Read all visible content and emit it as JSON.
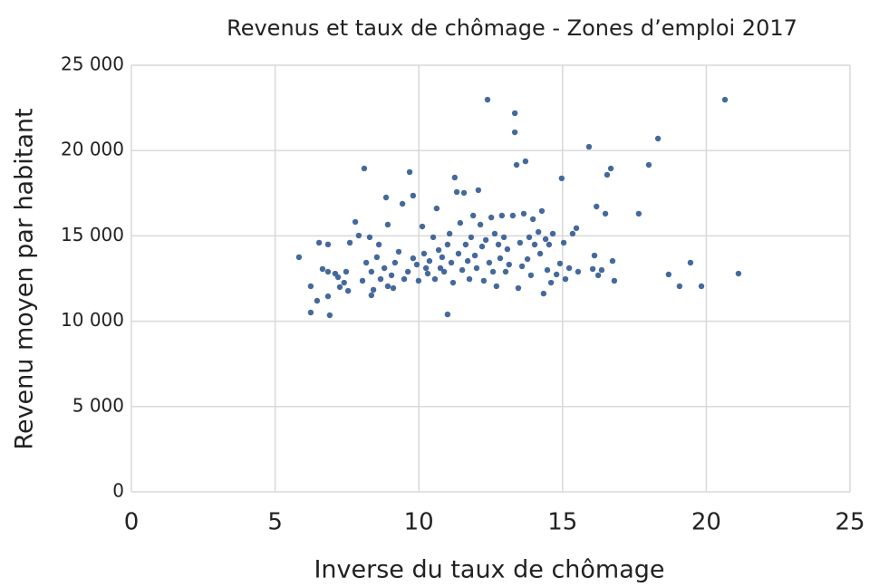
{
  "chart_data": {
    "type": "scatter",
    "title": "Revenus et taux de chômage -  Zones d’emploi 2017",
    "xlabel": "Inverse du taux de chômage",
    "ylabel": "Revenu moyen par habitant",
    "color": "#44699b",
    "grid": true,
    "xlim": [
      0,
      25
    ],
    "xticks": [
      0,
      5,
      10,
      15,
      20,
      25
    ],
    "ylim": [
      0,
      25000
    ],
    "yticks": [
      0,
      {
        "value": 5000,
        "label": "5 000"
      },
      {
        "value": 10000,
        "label": "10 000"
      },
      {
        "value": 15000,
        "label": "15 000"
      },
      {
        "value": 20000,
        "label": "20 000"
      },
      {
        "value": 25000,
        "label": "25 000"
      }
    ],
    "x": [
      5.83,
      6.24,
      6.24,
      6.46,
      6.53,
      6.84,
      6.65,
      6.84,
      6.84,
      6.9,
      7.09,
      7.19,
      7.4,
      7.47,
      7.6,
      7.79,
      7.25,
      7.54,
      7.91,
      8.04,
      8.1,
      8.17,
      8.29,
      8.35,
      8.42,
      8.54,
      8.61,
      8.35,
      8.67,
      8.8,
      8.92,
      9.05,
      8.92,
      8.86,
      9.11,
      9.17,
      9.3,
      9.43,
      9.49,
      9.62,
      9.68,
      9.8,
      9.8,
      9.93,
      9.99,
      10.12,
      10.18,
      10.25,
      10.31,
      10.37,
      10.5,
      10.56,
      10.62,
      10.69,
      10.75,
      10.81,
      10.88,
      11,
      11,
      11.07,
      11.13,
      11.19,
      11.25,
      11.32,
      11.38,
      11.44,
      11.51,
      11.57,
      11.63,
      11.7,
      11.76,
      11.82,
      11.89,
      11.95,
      12.01,
      12.07,
      12.14,
      12.2,
      12.26,
      12.33,
      12.39,
      12.45,
      12.52,
      12.58,
      12.64,
      12.7,
      12.77,
      12.83,
      12.89,
      12.96,
      13.02,
      13.08,
      13.14,
      13.27,
      13.34,
      13.34,
      13.4,
      13.46,
      13.52,
      13.59,
      13.65,
      13.71,
      13.78,
      13.84,
      13.9,
      13.97,
      14.03,
      14.16,
      14.22,
      14.28,
      14.34,
      14.41,
      14.47,
      14.53,
      14.6,
      14.66,
      14.79,
      14.91,
      14.97,
      15.04,
      15.1,
      15.23,
      15.35,
      15.48,
      15.54,
      15.92,
      16.05,
      16.11,
      16.18,
      16.24,
      16.36,
      16.49,
      16.55,
      16.68,
      16.74,
      16.8,
      17.65,
      18,
      18.32,
      18.69,
      19.07,
      19.45,
      19.83,
      20.65,
      21.12
    ],
    "values": [
      13750,
      12050,
      10510,
      11200,
      14600,
      14500,
      13060,
      12900,
      11460,
      10350,
      12790,
      12580,
      12260,
      12900,
      14600,
      15820,
      12000,
      11780,
      15020,
      12370,
      18950,
      13430,
      14920,
      12900,
      11840,
      13750,
      14490,
      11520,
      12470,
      13110,
      15660,
      12690,
      12050,
      17250,
      11940,
      13430,
      14070,
      16880,
      12470,
      12900,
      18740,
      17360,
      13690,
      13320,
      12370,
      15550,
      13960,
      13110,
      12790,
      13530,
      14920,
      12470,
      16610,
      14170,
      13110,
      13750,
      12900,
      14490,
      10400,
      15130,
      13430,
      12260,
      18420,
      17570,
      13960,
      15760,
      13000,
      17520,
      14490,
      13530,
      12470,
      14920,
      16190,
      13850,
      13110,
      17680,
      15660,
      14380,
      12370,
      14760,
      22980,
      13430,
      16080,
      12900,
      15130,
      12050,
      14490,
      13690,
      16190,
      14920,
      12900,
      14220,
      13320,
      16190,
      22190,
      21070,
      19160,
      11940,
      14600,
      13220,
      16300,
      19370,
      13640,
      14920,
      12690,
      15980,
      14490,
      15230,
      13960,
      16460,
      11620,
      14810,
      13000,
      14490,
      12260,
      15130,
      12740,
      13380,
      18370,
      14600,
      12470,
      13110,
      15130,
      15450,
      12900,
      20220,
      13060,
      13850,
      16720,
      12690,
      13000,
      16300,
      18580,
      18950,
      13530,
      12370,
      16300,
      19160,
      20700,
      12740,
      12050,
      13430,
      12050,
      22980,
      12790
    ]
  }
}
